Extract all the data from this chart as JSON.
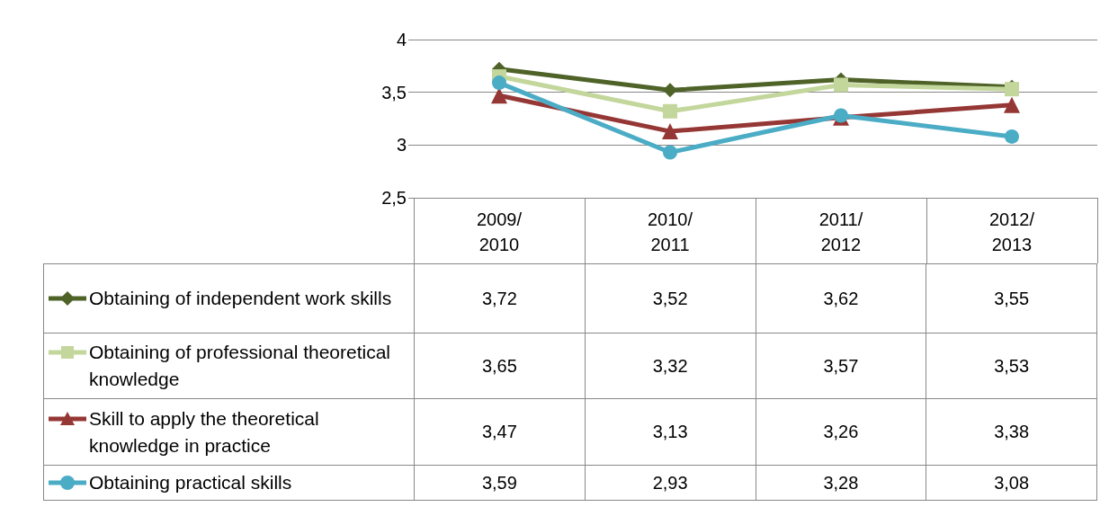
{
  "chart_data": {
    "type": "line",
    "categories": [
      "2009/2010",
      "2010/2011",
      "2011/2012",
      "2012/2013"
    ],
    "ylim": [
      2.5,
      4
    ],
    "yticks": [
      {
        "value": 2.5,
        "label": "2,5"
      },
      {
        "value": 3,
        "label": "3"
      },
      {
        "value": 3.5,
        "label": "3,5"
      },
      {
        "value": 4,
        "label": "4"
      }
    ],
    "grid": "y",
    "legend": "bottom",
    "line_style": "solid",
    "series": [
      {
        "name": "Obtaining of independent work skills",
        "color": "#4f6228",
        "marker": "diamond",
        "values": [
          3.72,
          3.52,
          3.62,
          3.55
        ],
        "value_labels": [
          "3,72",
          "3,52",
          "3,62",
          "3,55"
        ]
      },
      {
        "name": "Obtaining of professional theoretical knowledge",
        "color": "#c3d69b",
        "marker": "square",
        "values": [
          3.65,
          3.32,
          3.57,
          3.53
        ],
        "value_labels": [
          "3,65",
          "3,32",
          "3,57",
          "3,53"
        ]
      },
      {
        "name": "Skill to apply the theoretical knowledge in practice",
        "color": "#953735",
        "marker": "triangle",
        "values": [
          3.47,
          3.13,
          3.26,
          3.38
        ],
        "value_labels": [
          "3,47",
          "3,13",
          "3,26",
          "3,38"
        ]
      },
      {
        "name": "Obtaining practical skills",
        "color": "#4bacc6",
        "marker": "circle",
        "values": [
          3.59,
          2.93,
          3.28,
          3.08
        ],
        "value_labels": [
          "3,59",
          "2,93",
          "3,28",
          "3,08"
        ]
      }
    ]
  }
}
